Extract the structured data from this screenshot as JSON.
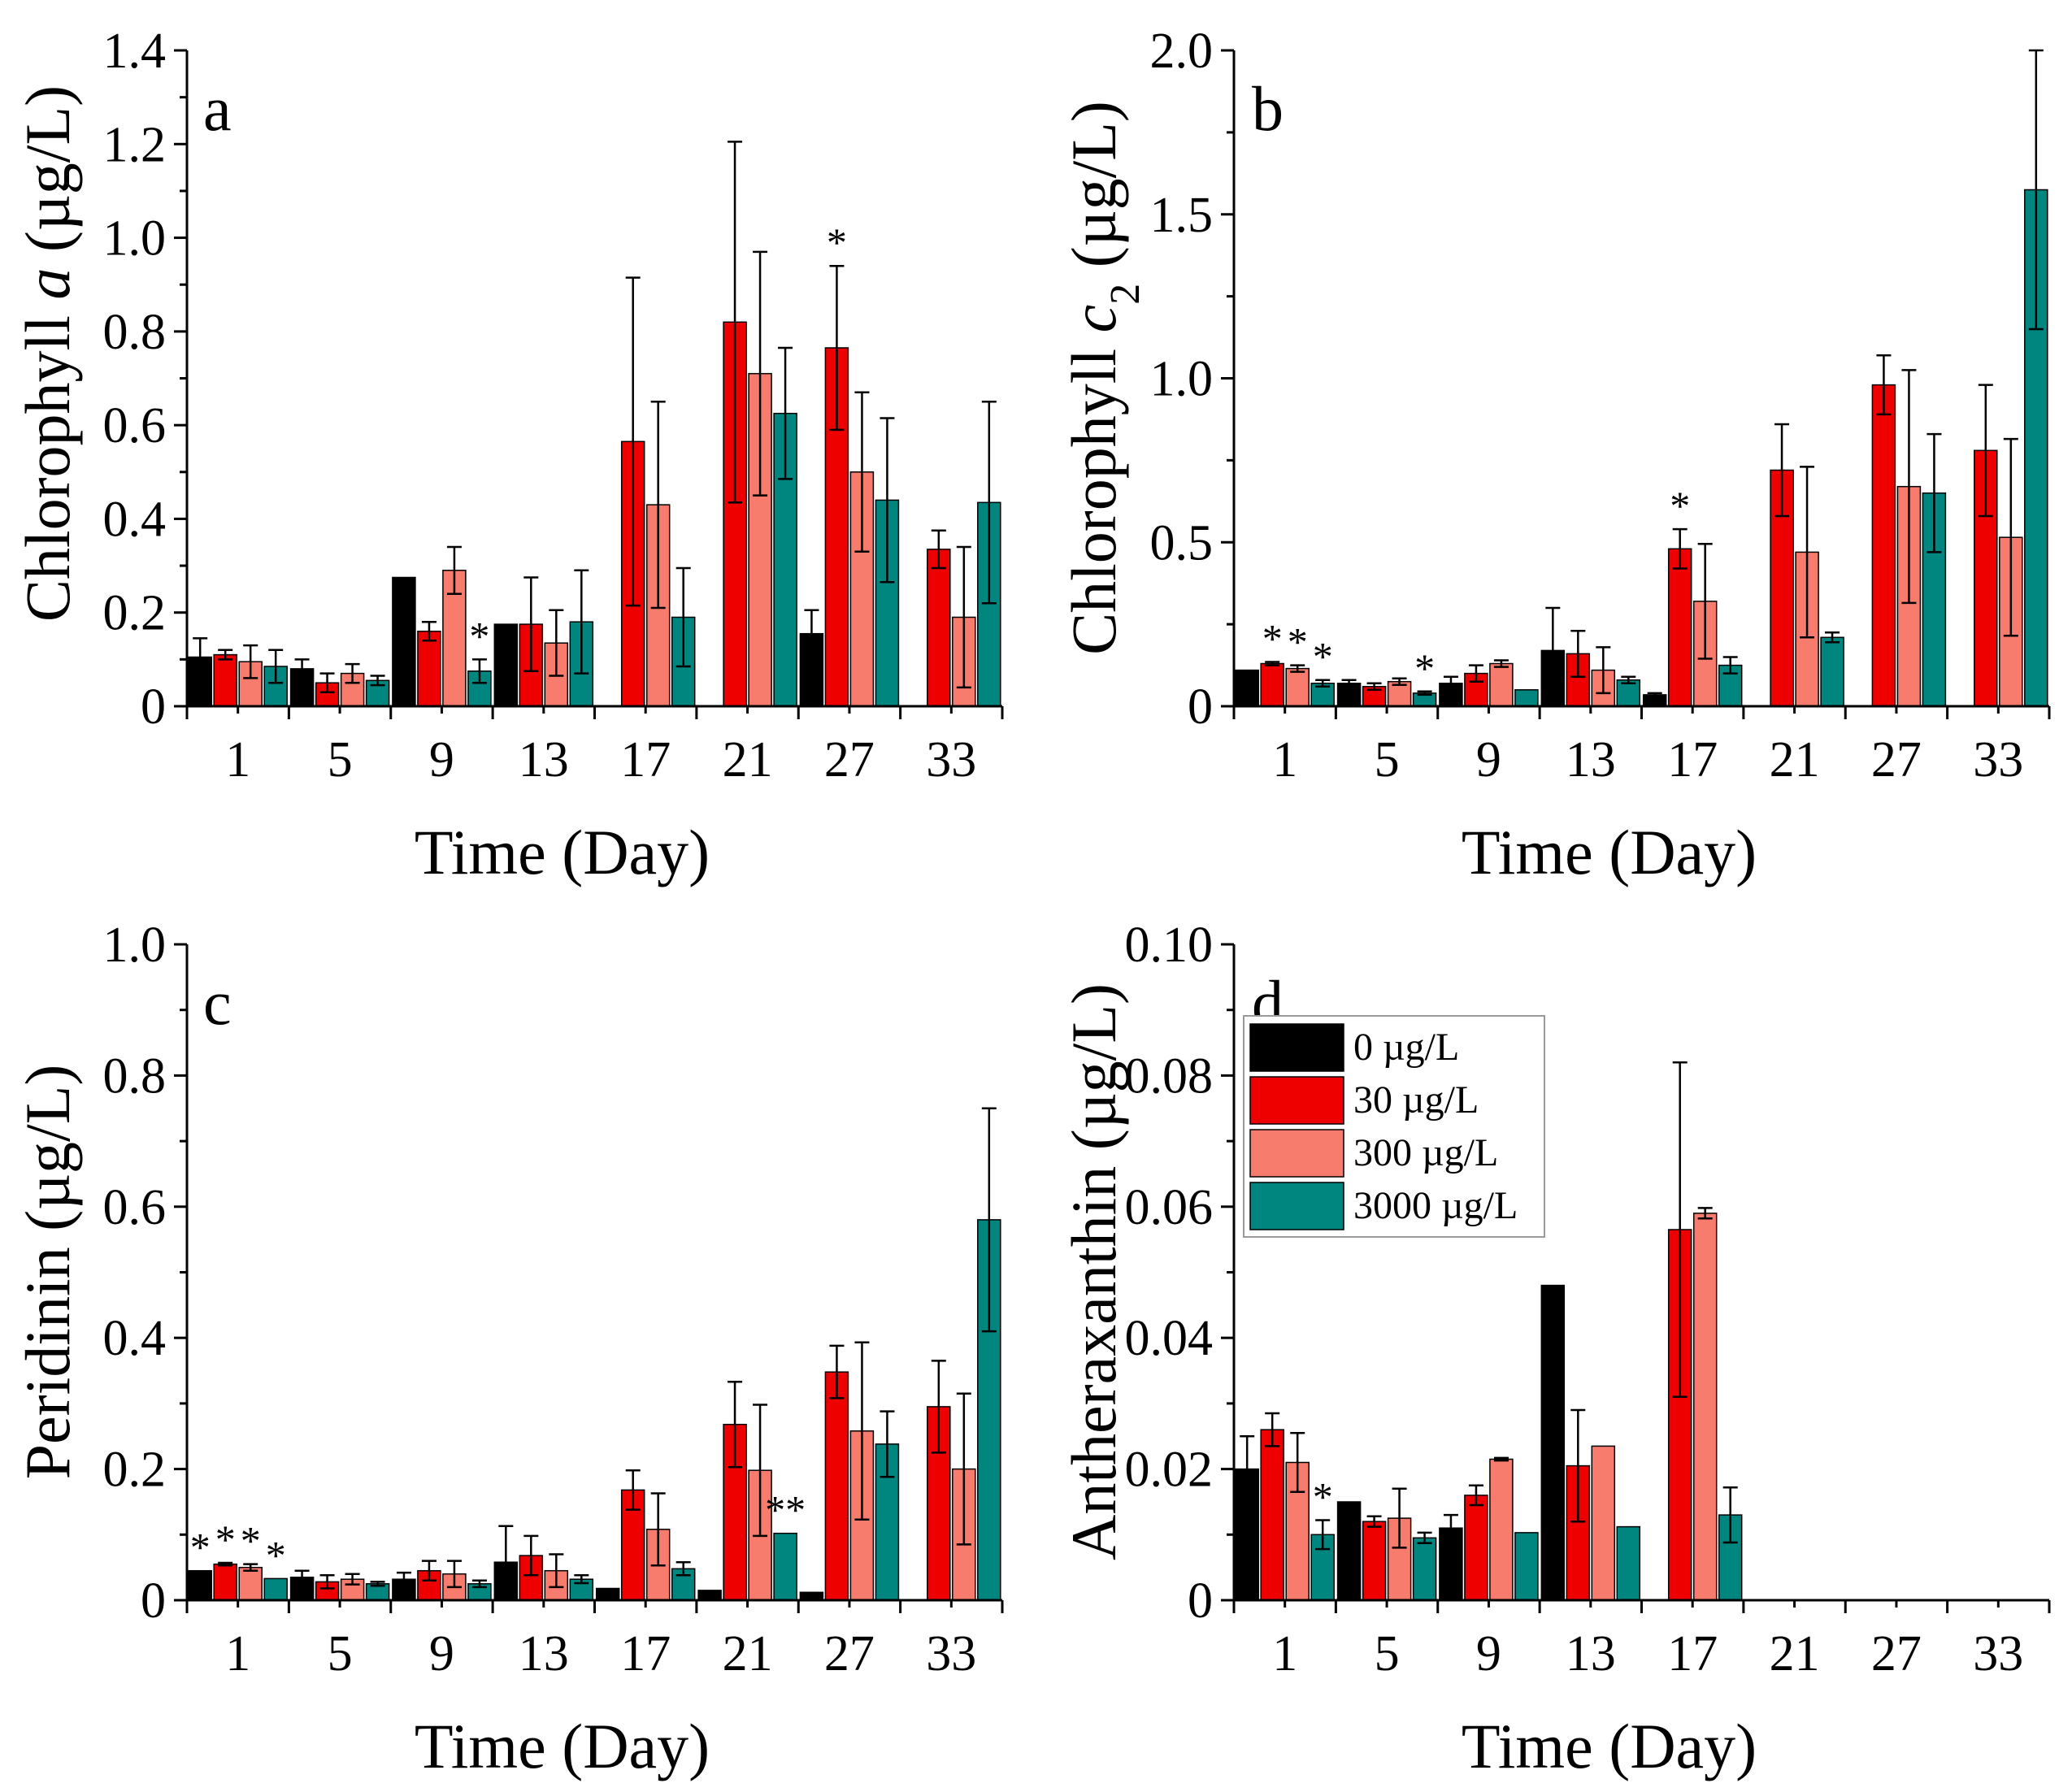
{
  "figure": {
    "legend": {
      "entries": [
        "0 µg/L",
        "30 µg/L",
        "300 µg/L",
        "3000 µg/L"
      ],
      "panel": "d"
    }
  },
  "colors": {
    "series": [
      "#000000",
      "#ee0000",
      "#f87c6e",
      "#00857f"
    ],
    "axis": "#000000"
  },
  "chart_data": [
    {
      "type": "bar",
      "panel_label": "a",
      "categories": [
        "1",
        "5",
        "9",
        "13",
        "17",
        "21",
        "27",
        "33"
      ],
      "xlabel": "Time (Day)",
      "ylabel": "Chlorophyll a (µg/L)",
      "ylabel_parts": [
        "Chlorophyll ",
        "a",
        " (µg/L)"
      ],
      "ylim": [
        0,
        1.4
      ],
      "yticks": [
        0,
        0.2,
        0.4,
        0.6,
        0.8,
        1.0,
        1.2,
        1.4
      ],
      "ytick_labels": [
        "0",
        "0.2",
        "0.4",
        "0.6",
        "0.8",
        "1.0",
        "1.2",
        "1.4"
      ],
      "series": [
        {
          "name": "0 µg/L",
          "values": [
            0.105,
            0.08,
            0.275,
            0.175,
            null,
            null,
            0.155,
            null
          ],
          "errors": [
            0.04,
            0.02,
            0.0,
            0.0,
            null,
            null,
            0.05,
            null
          ]
        },
        {
          "name": "30 µg/L",
          "values": [
            0.11,
            0.05,
            0.16,
            0.175,
            0.565,
            0.82,
            0.765,
            0.335
          ],
          "errors": [
            0.01,
            0.02,
            0.02,
            0.1,
            0.35,
            0.385,
            0.175,
            0.04
          ]
        },
        {
          "name": "300 µg/L",
          "values": [
            0.095,
            0.07,
            0.29,
            0.135,
            0.43,
            0.71,
            0.5,
            0.19
          ],
          "errors": [
            0.035,
            0.02,
            0.05,
            0.07,
            0.22,
            0.26,
            0.17,
            0.15
          ]
        },
        {
          "name": "3000 µg/L",
          "values": [
            0.085,
            0.055,
            0.075,
            0.18,
            0.19,
            0.625,
            0.44,
            0.435
          ],
          "errors": [
            0.035,
            0.01,
            0.025,
            0.11,
            0.105,
            0.14,
            0.175,
            0.215
          ]
        }
      ],
      "annotations": [
        {
          "category": "9",
          "series": 3,
          "text": "*"
        },
        {
          "category": "27",
          "series": 1,
          "text": "*"
        }
      ]
    },
    {
      "type": "bar",
      "panel_label": "b",
      "categories": [
        "1",
        "5",
        "9",
        "13",
        "17",
        "21",
        "27",
        "33"
      ],
      "xlabel": "Time (Day)",
      "ylabel": "Chlorophyll c2 (µg/L)",
      "ylabel_parts": [
        "Chlorophyll ",
        "c",
        "2",
        " (µg/L)"
      ],
      "ylim": [
        0,
        2.0
      ],
      "yticks": [
        0,
        0.5,
        1.0,
        1.5,
        2.0
      ],
      "ytick_labels": [
        "0",
        "0.5",
        "1.0",
        "1.5",
        "2.0"
      ],
      "series": [
        {
          "name": "0 µg/L",
          "values": [
            0.11,
            0.07,
            0.07,
            0.17,
            0.035,
            null,
            null,
            null
          ],
          "errors": [
            0.0,
            0.01,
            0.02,
            0.13,
            0.005,
            null,
            null,
            null
          ]
        },
        {
          "name": "30 µg/L",
          "values": [
            0.13,
            0.06,
            0.1,
            0.16,
            0.48,
            0.72,
            0.98,
            0.78
          ],
          "errors": [
            0.005,
            0.01,
            0.025,
            0.07,
            0.06,
            0.14,
            0.09,
            0.2
          ]
        },
        {
          "name": "300 µg/L",
          "values": [
            0.115,
            0.075,
            0.13,
            0.11,
            0.32,
            0.47,
            0.67,
            0.515
          ],
          "errors": [
            0.01,
            0.01,
            0.01,
            0.07,
            0.175,
            0.26,
            0.355,
            0.3
          ]
        },
        {
          "name": "3000 µg/L",
          "values": [
            0.07,
            0.04,
            0.05,
            0.08,
            0.125,
            0.21,
            0.65,
            1.575
          ],
          "errors": [
            0.01,
            0.005,
            0.0,
            0.01,
            0.025,
            0.015,
            0.18,
            0.425
          ]
        }
      ],
      "annotations": [
        {
          "category": "1",
          "series": 1,
          "text": "*"
        },
        {
          "category": "1",
          "series": 2,
          "text": "*"
        },
        {
          "category": "1",
          "series": 3,
          "text": "*"
        },
        {
          "category": "5",
          "series": 3,
          "text": "*"
        },
        {
          "category": "17",
          "series": 1,
          "text": "*"
        }
      ]
    },
    {
      "type": "bar",
      "panel_label": "c",
      "categories": [
        "1",
        "5",
        "9",
        "13",
        "17",
        "21",
        "27",
        "33"
      ],
      "xlabel": "Time (Day)",
      "ylabel": "Peridinin (µg/L)",
      "ylabel_parts": [
        "Peridinin (µg/L)"
      ],
      "ylim": [
        0,
        1.0
      ],
      "yticks": [
        0,
        0.2,
        0.4,
        0.6,
        0.8,
        1.0
      ],
      "ytick_labels": [
        "0",
        "0.2",
        "0.4",
        "0.6",
        "0.8",
        "1.0"
      ],
      "series": [
        {
          "name": "0 µg/L",
          "values": [
            0.045,
            0.035,
            0.032,
            0.058,
            0.018,
            0.015,
            0.012,
            null
          ],
          "errors": [
            0.0,
            0.01,
            0.01,
            0.055,
            0.0,
            0.0,
            0.0,
            null
          ]
        },
        {
          "name": "30 µg/L",
          "values": [
            0.055,
            0.028,
            0.045,
            0.068,
            0.168,
            0.268,
            0.348,
            0.295
          ],
          "errors": [
            0.002,
            0.01,
            0.015,
            0.03,
            0.03,
            0.065,
            0.04,
            0.07
          ]
        },
        {
          "name": "300 µg/L",
          "values": [
            0.05,
            0.032,
            0.04,
            0.045,
            0.108,
            0.198,
            0.258,
            0.2
          ],
          "errors": [
            0.005,
            0.008,
            0.02,
            0.025,
            0.055,
            0.1,
            0.135,
            0.115
          ]
        },
        {
          "name": "3000 µg/L",
          "values": [
            0.033,
            0.025,
            0.025,
            0.032,
            0.048,
            0.102,
            0.238,
            0.58
          ],
          "errors": [
            0.0,
            0.003,
            0.005,
            0.006,
            0.01,
            0.0,
            0.05,
            0.17
          ]
        }
      ],
      "annotations": [
        {
          "category": "1",
          "series": 0,
          "text": "*"
        },
        {
          "category": "1",
          "series": 1,
          "text": "*"
        },
        {
          "category": "1",
          "series": 2,
          "text": "*"
        },
        {
          "category": "1",
          "series": 3,
          "text": "*"
        },
        {
          "category": "21",
          "series": 3,
          "text": "**"
        }
      ]
    },
    {
      "type": "bar",
      "panel_label": "d",
      "categories": [
        "1",
        "5",
        "9",
        "13",
        "17",
        "21",
        "27",
        "33"
      ],
      "xlabel": "Time (Day)",
      "ylabel": "Antheraxanthin (µg/L)",
      "ylabel_parts": [
        "Antheraxanthin (µg/L)"
      ],
      "ylim": [
        0,
        0.1
      ],
      "yticks": [
        0,
        0.02,
        0.04,
        0.06,
        0.08,
        0.1
      ],
      "ytick_labels": [
        "0",
        "0.02",
        "0.04",
        "0.06",
        "0.08",
        "0.10"
      ],
      "series": [
        {
          "name": "0 µg/L",
          "values": [
            0.02,
            0.015,
            0.011,
            0.048,
            null,
            null,
            null,
            null
          ],
          "errors": [
            0.005,
            0.0,
            0.002,
            0.0,
            null,
            null,
            null,
            null
          ]
        },
        {
          "name": "30 µg/L",
          "values": [
            0.026,
            0.012,
            0.016,
            0.0205,
            0.0565,
            null,
            null,
            null
          ],
          "errors": [
            0.0025,
            0.0008,
            0.0015,
            0.0085,
            0.0255,
            null,
            null,
            null
          ]
        },
        {
          "name": "300 µg/L",
          "values": [
            0.021,
            0.0125,
            0.0215,
            0.0235,
            0.059,
            null,
            null,
            null
          ],
          "errors": [
            0.0045,
            0.0045,
            0.0002,
            0.0,
            0.0008,
            null,
            null,
            null
          ]
        },
        {
          "name": "3000 µg/L",
          "values": [
            0.01,
            0.0095,
            0.0103,
            0.0112,
            0.013,
            null,
            null,
            null
          ],
          "errors": [
            0.0022,
            0.0008,
            0.0,
            0.0,
            0.0042,
            null,
            null,
            null
          ]
        }
      ],
      "annotations": [
        {
          "category": "1",
          "series": 3,
          "text": "*"
        }
      ]
    }
  ]
}
